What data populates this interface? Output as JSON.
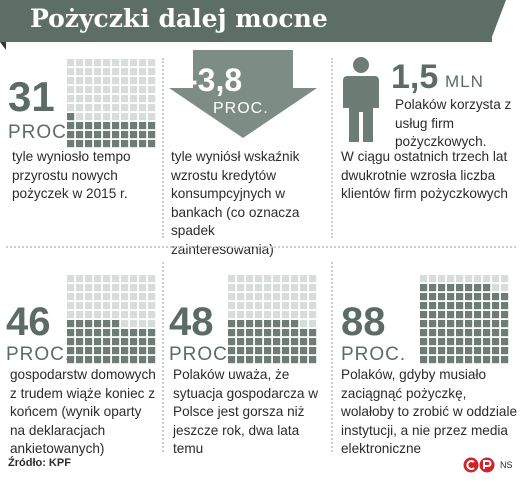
{
  "title": "Pożyczki dalej mocne",
  "colors": {
    "accent": "#5d6e67",
    "dot_filled": "#6e7c76",
    "dot_empty": "#d8dcda",
    "text": "#2b2b2b"
  },
  "chart_data": [
    {
      "type": "waffle",
      "value": 31,
      "unit": "PROC.",
      "description": "tyle wyniosło tempo przyrostu nowych pożyczek w 2015 r."
    },
    {
      "type": "arrow",
      "value": -3.8,
      "value_label": "-3,8",
      "unit": "PROC.",
      "description": "tyle wyniósł wskaźnik wzrostu kredytów konsumpcyjnych w bankach (co oznacza spadek zainteresowania)"
    },
    {
      "type": "pictogram",
      "value": 1.5,
      "value_label": "1,5",
      "unit": "MLN",
      "description": "Polaków korzysta z usług firm pożyczkowych.",
      "extra": "W ciągu ostatnich trzech lat dwukrotnie wzrosła liczba klientów firm pożyczkowych"
    },
    {
      "type": "waffle",
      "value": 46,
      "unit": "PROC.",
      "description": "gospodarstw domowych z trudem wiąże koniec z końcem (wynik oparty na deklaracjach ankietowanych)"
    },
    {
      "type": "waffle",
      "value": 48,
      "unit": "PROC.",
      "description": "Polaków uważa, że sytuacja gospodarcza w Polsce jest gorsza niż jeszcze rok, dwa lata temu"
    },
    {
      "type": "waffle",
      "value": 88,
      "unit": "PROC.",
      "description": "Polaków, gdyby musiało zaciągnąć pożyczkę, wolałoby to zrobić w oddziale instytucji, a nie przez media elektroniczne"
    }
  ],
  "footer": {
    "source": "Źródło: KPF",
    "badge": "NS"
  }
}
